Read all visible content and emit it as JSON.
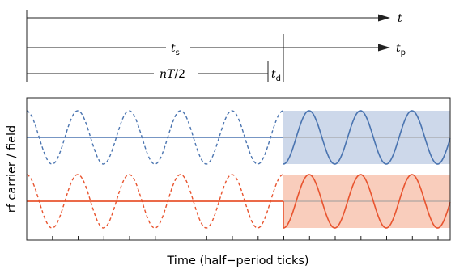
{
  "timeline": {
    "t_label": "t",
    "ts_label": "t",
    "ts_sub": "s",
    "tp_label": "t",
    "tp_sub": "p",
    "nt_label_italic": "nT",
    "nt_label_rest": "/2",
    "td_label": "t",
    "td_sub": "d"
  },
  "plot": {
    "xlabel": "Time (half−period ticks)",
    "ylabel": "rf  carrier / field",
    "grid": false,
    "colors": {
      "blue": "#4a74b0",
      "blue_fill": "#cdd8ea",
      "red": "#e8542f",
      "red_fill": "#f9cdbc",
      "baseline": "#9a9a9a",
      "frame": "#222222"
    }
  }
}
